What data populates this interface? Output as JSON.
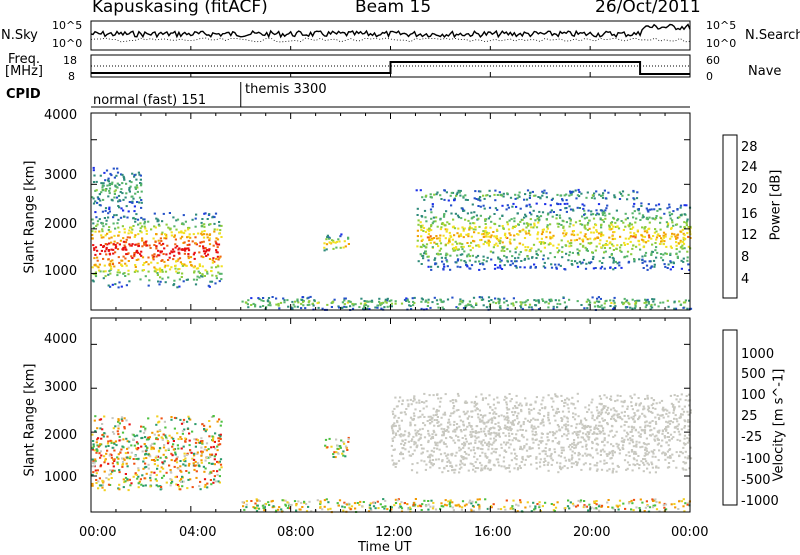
{
  "header": {
    "title": "Kapuskasing (fitACF)",
    "beam": "Beam 15",
    "date": "26/Oct/2011"
  },
  "top_panels": {
    "nsky_label": "N.Sky",
    "nsky_ticks": [
      "10^5",
      "10^0"
    ],
    "nsearch_label": "N.Search",
    "nsearch_ticks": [
      "10^5",
      "10^0"
    ],
    "freq_label_1": "Freq.",
    "freq_label_2": "[MHz]",
    "freq_ticks": [
      "18",
      "8"
    ],
    "nave_label": "Nave",
    "nave_ticks": [
      "60",
      "0"
    ],
    "cpid_label": "CPID",
    "cpid_modes": [
      {
        "name": "normal (fast) 151",
        "start_hour": 0
      },
      {
        "name": "themis 3300",
        "start_hour": 6
      }
    ]
  },
  "x_axis": {
    "label": "Time UT",
    "ticks": [
      "00:00",
      "04:00",
      "08:00",
      "12:00",
      "16:00",
      "20:00",
      "00:00"
    ]
  },
  "chart_data": [
    {
      "type": "heatmap",
      "panel": "power",
      "ylabel": "Slant Range [km]",
      "xlim_hours": [
        0,
        24
      ],
      "ylim": [
        180,
        4600
      ],
      "y_ticks": [
        "4000",
        "3000",
        "2000",
        "1000"
      ],
      "colorbar_label": "Power [dB]",
      "colorbar_ticks": [
        "28",
        "24",
        "20",
        "16",
        "12",
        "8",
        "4"
      ],
      "colors": [
        "#1a2ee8",
        "#2450c8",
        "#2e8a7a",
        "#56b46a",
        "#8ccc3c",
        "#f2e020",
        "#f2a000",
        "#f06010",
        "#e81010"
      ],
      "scatter_regions": [
        {
          "t0": 0.0,
          "t1": 5.2,
          "r0": 700,
          "r1": 2400,
          "peak": 0.9
        },
        {
          "t0": 0.0,
          "t1": 2.0,
          "r0": 2400,
          "r1": 3400,
          "peak": 0.3
        },
        {
          "t0": 9.3,
          "t1": 10.3,
          "r0": 1450,
          "r1": 1900,
          "peak": 0.6
        },
        {
          "t0": 13.0,
          "t1": 24.0,
          "r0": 1100,
          "r1": 2600,
          "peak": 0.6
        },
        {
          "t0": 13.0,
          "t1": 22.0,
          "r0": 2650,
          "r1": 2900,
          "peak": 0.3
        },
        {
          "t0": 6.0,
          "t1": 24.0,
          "r0": 200,
          "r1": 500,
          "peak": 0.4
        }
      ]
    },
    {
      "type": "heatmap",
      "panel": "velocity",
      "ylabel": "Slant Range [km]",
      "xlim_hours": [
        0,
        24
      ],
      "ylim": [
        180,
        4600
      ],
      "y_ticks": [
        "4000",
        "3000",
        "2000",
        "1000"
      ],
      "colorbar_label": "Velocity [m s^-1]",
      "colorbar_ticks": [
        "1000",
        "500",
        "100",
        "25",
        "-25",
        "-100",
        "-500",
        "-1000"
      ],
      "colors": [
        "#1a2ee8",
        "#2a7ac8",
        "#2a9a6a",
        "#4cc040",
        "#c8c8c0",
        "#f2d020",
        "#f29a00",
        "#f05010",
        "#e81010"
      ],
      "scatter_regions": [
        {
          "t0": 0.0,
          "t1": 5.2,
          "r0": 700,
          "r1": 2400,
          "peak": 0.8
        },
        {
          "t0": 9.3,
          "t1": 10.3,
          "r0": 1450,
          "r1": 1900,
          "peak": 0.7
        },
        {
          "t0": 12.0,
          "t1": 24.0,
          "r0": 1100,
          "r1": 2900,
          "peak": 0.1
        },
        {
          "t0": 6.0,
          "t1": 24.0,
          "r0": 200,
          "r1": 500,
          "peak": 0.6
        }
      ]
    }
  ]
}
